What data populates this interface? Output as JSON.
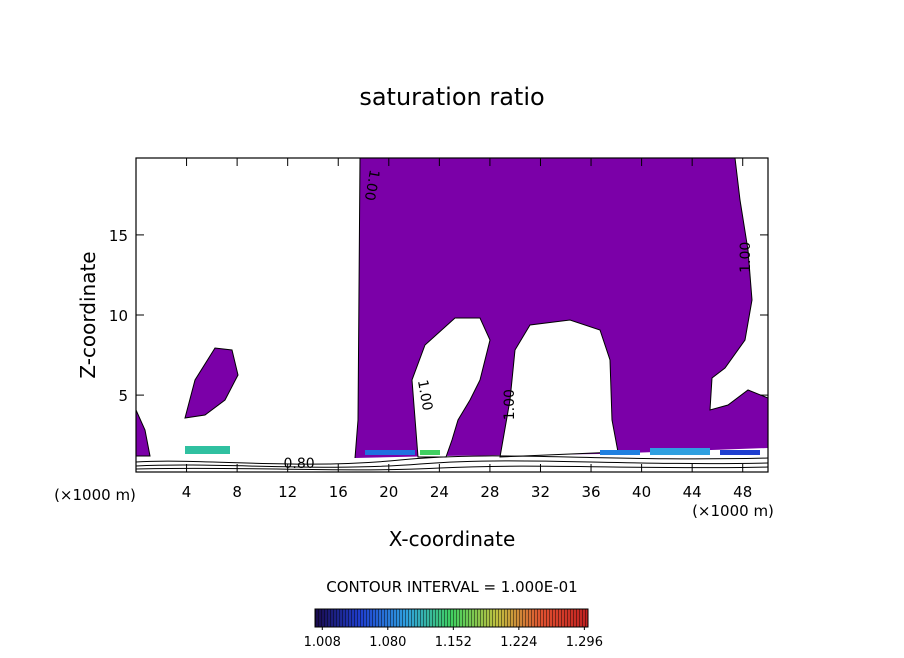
{
  "chart_data": {
    "type": "contour",
    "title": "saturation ratio",
    "x_label": "X-coordinate",
    "y_label": "Z-coordinate",
    "x_unit": "(×1000 m)",
    "y_unit": "(×1000 m)",
    "xlim": [
      0,
      50
    ],
    "ylim": [
      0.2,
      19.8
    ],
    "xticks": [
      4,
      8,
      12,
      16,
      20,
      24,
      28,
      32,
      36,
      40,
      44,
      48
    ],
    "yticks": [
      5,
      10,
      15
    ],
    "fill_color": "#7b00a8",
    "contour_labels": [
      {
        "value": 1,
        "label": "1.00",
        "x": 18.7,
        "y": 18.1
      },
      {
        "value": 1,
        "label": "1.00",
        "x": 22.9,
        "y": 5.0
      },
      {
        "value": 1,
        "label": "1.00",
        "x": 29.5,
        "y": 4.4
      },
      {
        "value": 1,
        "label": "1.00",
        "x": 48.2,
        "y": 13.6
      },
      {
        "value": 0.8,
        "label": "0.80",
        "x": 12.9,
        "y": 0.75
      }
    ],
    "contour_interval": "CONTOUR INTERVAL = 1.000E-01",
    "colorbar": {
      "lim": [
        1.0,
        1.3
      ],
      "colors": [
        "#1a0a4a",
        "#1f3fd0",
        "#2fa0e0",
        "#40d060",
        "#c0c040",
        "#e05030",
        "#c02020"
      ],
      "ticks": [
        1.008,
        {
          "value": 1.08,
          "label": "1.080"
        },
        1.152,
        1.224,
        1.296
      ]
    }
  }
}
